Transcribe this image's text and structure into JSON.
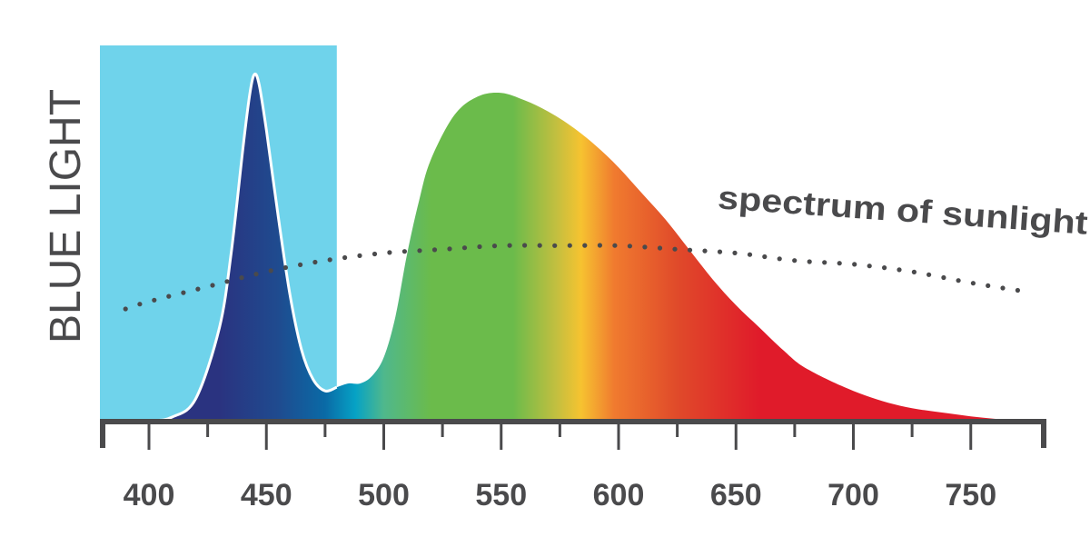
{
  "chart_data": {
    "type": "area",
    "title": "",
    "xlabel": "",
    "ylabel": "BLUE LIGHT",
    "xlim": [
      380,
      780
    ],
    "ylim": [
      0,
      1
    ],
    "x_ticks": [
      400,
      450,
      500,
      550,
      600,
      650,
      700,
      750
    ],
    "highlight_band": {
      "x0": 380,
      "x1": 480,
      "color": "#6fd3eb"
    },
    "series": [
      {
        "kind": "emission",
        "x": [
          380,
          400,
          410,
          420,
          430,
          435,
          440,
          443,
          445,
          447,
          450,
          455,
          460,
          465,
          470,
          475,
          480,
          485,
          490,
          495,
          500,
          505,
          510,
          515,
          520,
          530,
          540,
          550,
          560,
          570,
          580,
          590,
          600,
          610,
          620,
          630,
          640,
          650,
          660,
          670,
          680,
          700,
          720,
          740,
          760,
          780
        ],
        "y": [
          0,
          0,
          0.01,
          0.06,
          0.25,
          0.45,
          0.73,
          0.88,
          0.93,
          0.9,
          0.78,
          0.55,
          0.34,
          0.19,
          0.11,
          0.08,
          0.09,
          0.1,
          0.1,
          0.12,
          0.17,
          0.28,
          0.45,
          0.59,
          0.7,
          0.82,
          0.87,
          0.88,
          0.86,
          0.83,
          0.79,
          0.74,
          0.68,
          0.61,
          0.54,
          0.46,
          0.38,
          0.31,
          0.25,
          0.19,
          0.14,
          0.08,
          0.04,
          0.02,
          0.005,
          0
        ],
        "colors": [
          {
            "at": 430,
            "color": "#2a3380"
          },
          {
            "at": 455,
            "color": "#1f4b8f"
          },
          {
            "at": 475,
            "color": "#0a6aa6"
          },
          {
            "at": 488,
            "color": "#06a2c5"
          },
          {
            "at": 500,
            "color": "#4fb88c"
          },
          {
            "at": 520,
            "color": "#6bbb4b"
          },
          {
            "at": 555,
            "color": "#6bbb4b"
          },
          {
            "at": 574,
            "color": "#c5bf3f"
          },
          {
            "at": 584,
            "color": "#f6c330"
          },
          {
            "at": 598,
            "color": "#f07b2f"
          },
          {
            "at": 625,
            "color": "#e04a2a"
          },
          {
            "at": 660,
            "color": "#e01b2a"
          },
          {
            "at": 780,
            "color": "#e01b2a"
          }
        ]
      },
      {
        "kind": "sunlight",
        "style": "dotted",
        "x": [
          390,
          400,
          425,
          450,
          475,
          500,
          525,
          550,
          575,
          600,
          625,
          650,
          675,
          700,
          725,
          750,
          770
        ],
        "y": [
          0.3,
          0.32,
          0.36,
          0.4,
          0.43,
          0.45,
          0.46,
          0.47,
          0.47,
          0.47,
          0.46,
          0.45,
          0.43,
          0.42,
          0.4,
          0.37,
          0.35
        ]
      }
    ],
    "annotations": [
      {
        "text": "spectrum of sunlight",
        "x": 642,
        "y": 0.57
      }
    ]
  }
}
